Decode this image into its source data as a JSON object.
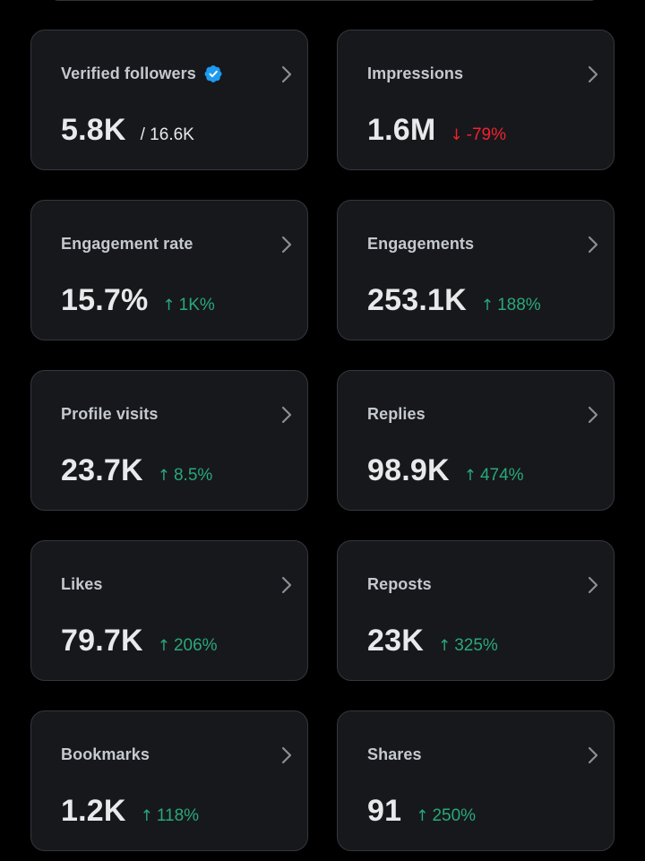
{
  "colors": {
    "background": "#000000",
    "card": "#16181c",
    "card_border": "#34373c",
    "label": "#c5c9cd",
    "value": "#e7e9ea",
    "up": "#2aa879",
    "down": "#f4212e",
    "verified": "#1d9bf0"
  },
  "cards": [
    {
      "label": "Verified followers",
      "value": "5.8K",
      "sub": "/ 16.6K",
      "icon": "verified-badge-icon"
    },
    {
      "label": "Impressions",
      "value": "1.6M",
      "change": "-79%",
      "direction": "down",
      "arrow": "↓"
    },
    {
      "label": "Engagement rate",
      "value": "15.7%",
      "change": "1K%",
      "direction": "up",
      "arrow": "↑"
    },
    {
      "label": "Engagements",
      "value": "253.1K",
      "change": "188%",
      "direction": "up",
      "arrow": "↑"
    },
    {
      "label": "Profile visits",
      "value": "23.7K",
      "change": "8.5%",
      "direction": "up",
      "arrow": "↑"
    },
    {
      "label": "Replies",
      "value": "98.9K",
      "change": "474%",
      "direction": "up",
      "arrow": "↑"
    },
    {
      "label": "Likes",
      "value": "79.7K",
      "change": "206%",
      "direction": "up",
      "arrow": "↑"
    },
    {
      "label": "Reposts",
      "value": "23K",
      "change": "325%",
      "direction": "up",
      "arrow": "↑"
    },
    {
      "label": "Bookmarks",
      "value": "1.2K",
      "change": "118%",
      "direction": "up",
      "arrow": "↑"
    },
    {
      "label": "Shares",
      "value": "91",
      "change": "250%",
      "direction": "up",
      "arrow": "↑"
    }
  ]
}
